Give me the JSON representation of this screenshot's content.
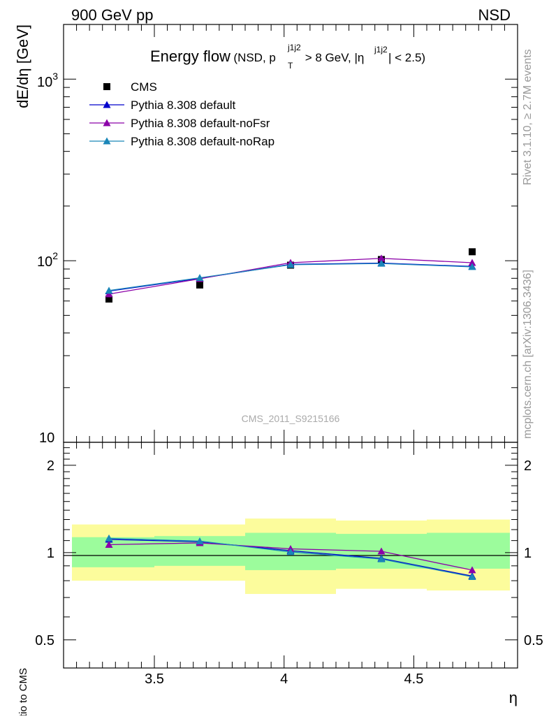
{
  "header": {
    "left_label": "900 GeV pp",
    "right_label": "NSD"
  },
  "side_labels": {
    "rivet": "Rivet 3.1.10, ≥ 2.7M events",
    "mcplots": "mcplots.cern.ch [arXiv:1306.3436]"
  },
  "chart_data": {
    "type": "scatter",
    "title_main": "Energy flow",
    "title_paren_open": "(NSD, p",
    "title_pt_sup": "j1j2",
    "title_pt_sub": "T",
    "title_mid": " > 8 GeV, |η",
    "title_eta_sup": "j1j2",
    "title_end": "| < 2.5)",
    "watermark": "CMS_2011_S9215166",
    "ylabel": "dE/dη [GeV]",
    "xlabel": "η",
    "yscale": "log",
    "ylim": [
      10,
      2000
    ],
    "xlim": [
      3.15,
      4.9
    ],
    "x_ticks": [
      "3.5",
      "4",
      "4.5"
    ],
    "x_tick_values": [
      3.5,
      4.0,
      4.5
    ],
    "y_tick_labels": {
      "base_1000": "10",
      "exp_1000": "3",
      "base_100": "10",
      "exp_100": "2",
      "ten": "10"
    },
    "legend_position": "top-left",
    "x": [
      3.325,
      3.675,
      4.025,
      4.375,
      4.725
    ],
    "series": [
      {
        "name": "CMS",
        "values": [
          61.5,
          73.5,
          94.5,
          101.5,
          112.0
        ],
        "color": "#000000",
        "marker": "square"
      },
      {
        "name": "Pythia 8.308 default",
        "values": [
          68.0,
          80.0,
          95.5,
          97.0,
          93.0
        ],
        "color": "#0000cc",
        "marker": "triangle"
      },
      {
        "name": "Pythia 8.308 default-noFsr",
        "values": [
          65.5,
          79.5,
          97.5,
          103.0,
          97.5
        ],
        "color": "#8b00a8",
        "marker": "triangle"
      },
      {
        "name": "Pythia 8.308 default-noRap",
        "values": [
          68.5,
          80.5,
          95.0,
          96.5,
          92.5
        ],
        "color": "#1a86b8",
        "marker": "triangle"
      }
    ],
    "ratio_panel": {
      "ylabel": "Ratio to CMS",
      "yscale": "log",
      "ylim": [
        0.4,
        2.4
      ],
      "y_ticks": [
        "0.5",
        "1",
        "2"
      ],
      "y_tick_values": [
        0.5,
        1.0,
        2.0
      ],
      "bin_edges": [
        3.15,
        3.5,
        3.85,
        4.2,
        4.55,
        4.9
      ],
      "band_inner": [
        [
          0.89,
          1.13
        ],
        [
          0.9,
          1.14
        ],
        [
          0.87,
          1.17
        ],
        [
          0.88,
          1.16
        ],
        [
          0.88,
          1.17
        ]
      ],
      "band_outer": [
        [
          0.8,
          1.25
        ],
        [
          0.8,
          1.25
        ],
        [
          0.72,
          1.31
        ],
        [
          0.75,
          1.29
        ],
        [
          0.74,
          1.3
        ]
      ],
      "inner_color": "#9cfc9c",
      "outer_color": "#fcfc9c",
      "series": [
        {
          "name": "Pythia 8.308 default",
          "values": [
            1.11,
            1.09,
            1.015,
            0.955,
            0.83
          ],
          "color": "#0000cc"
        },
        {
          "name": "Pythia 8.308 default-noFsr",
          "values": [
            1.065,
            1.08,
            1.03,
            1.01,
            0.87
          ],
          "color": "#8b00a8"
        },
        {
          "name": "Pythia 8.308 default-noRap",
          "values": [
            1.12,
            1.095,
            1.005,
            0.95,
            0.825
          ],
          "color": "#1a86b8"
        }
      ]
    }
  }
}
